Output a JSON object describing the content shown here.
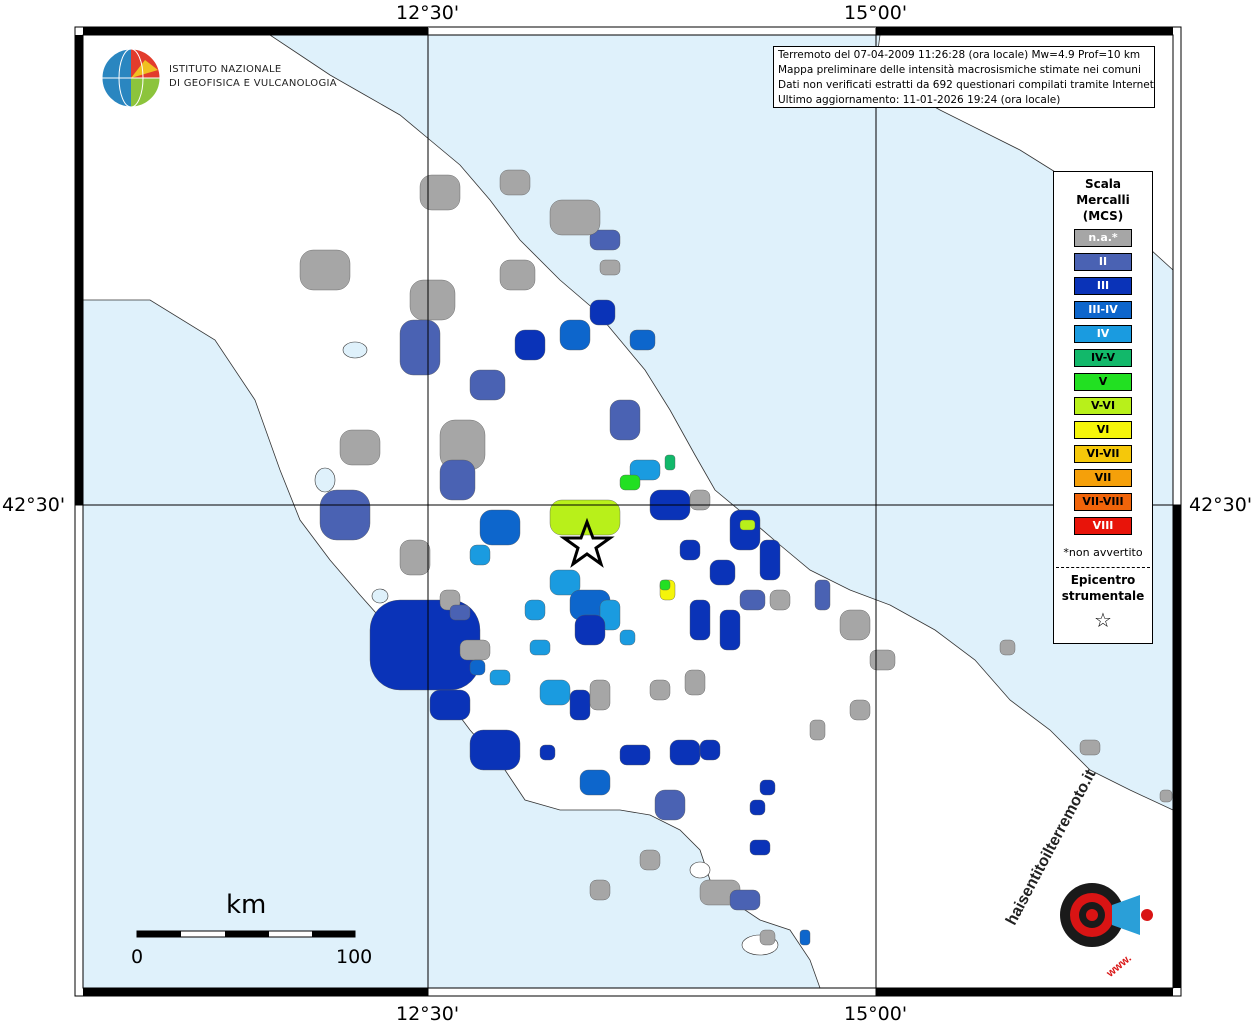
{
  "coord_labels": {
    "top_left": "12°30'",
    "top_right": "15°00'",
    "bottom_left": "12°30'",
    "bottom_right": "15°00'",
    "left": "42°30'",
    "right": "42°30'"
  },
  "institute": {
    "line1": "ISTITUTO NAZIONALE",
    "line2": "DI GEOFISICA E VULCANOLOGIA"
  },
  "info": {
    "line1": "Terremoto del 07-04-2009 11:26:28 (ora locale) Mw=4.9 Prof=10 km",
    "line2": "Mappa preliminare delle intensità macrosismiche stimate nei comuni",
    "line3": "Dati non verificati estratti da 692 questionari compilati tramite Internet.",
    "line4": "Ultimo aggiornamento: 11-01-2026 19:24 (ora locale)"
  },
  "legend": {
    "title1": "Scala",
    "title2": "Mercalli",
    "title3": "(MCS)",
    "classes": [
      {
        "label": "n.a.*",
        "color": "#a6a6a6",
        "text_color": "#ffffff"
      },
      {
        "label": "II",
        "color": "#4a62b3",
        "text_color": "#ffffff"
      },
      {
        "label": "III",
        "color": "#0a33b8",
        "text_color": "#ffffff"
      },
      {
        "label": "III-IV",
        "color": "#0d66cc",
        "text_color": "#ffffff"
      },
      {
        "label": "IV",
        "color": "#1a9be0",
        "text_color": "#ffffff"
      },
      {
        "label": "IV-V",
        "color": "#12b86a",
        "text_color": "#000000"
      },
      {
        "label": "V",
        "color": "#22e022",
        "text_color": "#000000"
      },
      {
        "label": "V-VI",
        "color": "#b8f01a",
        "text_color": "#000000"
      },
      {
        "label": "VI",
        "color": "#f5f50a",
        "text_color": "#000000"
      },
      {
        "label": "VI-VII",
        "color": "#f5c80a",
        "text_color": "#000000"
      },
      {
        "label": "VII",
        "color": "#f5a00a",
        "text_color": "#000000"
      },
      {
        "label": "VII-VIII",
        "color": "#f0640a",
        "text_color": "#000000"
      },
      {
        "label": "VIII",
        "color": "#e8140a",
        "text_color": "#ffffff"
      }
    ],
    "note": "*non avvertito",
    "epicenter1": "Epicentro",
    "epicenter2": "strumentale",
    "star": "☆"
  },
  "scale_bar": {
    "unit": "km",
    "min": "0",
    "max": "100"
  },
  "brand": {
    "text": "haisentitoilterremoto.it",
    "url": "www."
  },
  "colors": {
    "sea": "#dff1fb",
    "land": "#ffffff"
  }
}
